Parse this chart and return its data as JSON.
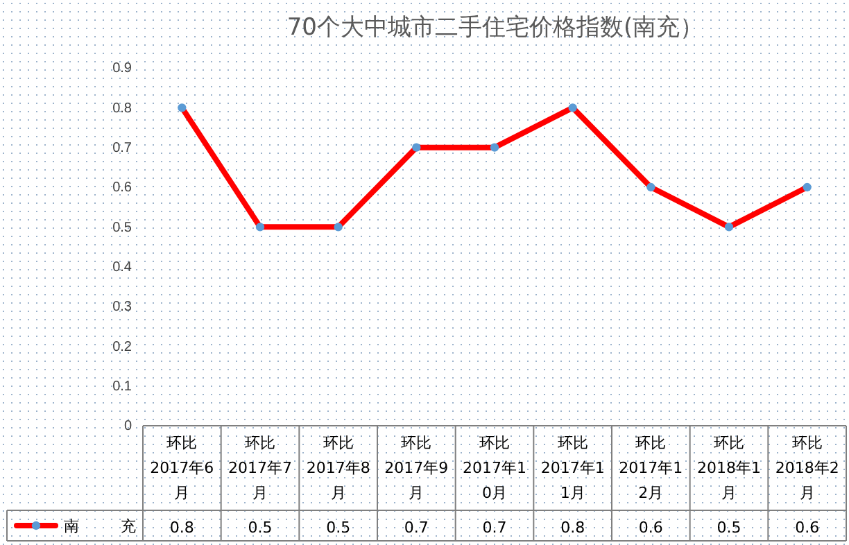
{
  "chart_data": {
    "type": "line",
    "title": "70个大中城市二手住宅价格指数(南充）",
    "categories": [
      "环比 2017年6月",
      "环比 2017年7月",
      "环比 2017年8月",
      "环比 2017年9月",
      "环比 2017年10月",
      "环比 2017年11月",
      "环比 2017年12月",
      "环比 2018年1月",
      "环比 2018年2月"
    ],
    "series": [
      {
        "name": "南充",
        "color": "#ff0000",
        "values": [
          0.8,
          0.5,
          0.5,
          0.7,
          0.7,
          0.8,
          0.6,
          0.5,
          0.6
        ]
      }
    ],
    "ylim": [
      0,
      0.9
    ],
    "yticks": [
      0,
      0.1,
      0.2,
      0.3,
      0.4,
      0.5,
      0.6,
      0.7,
      0.8,
      0.9
    ],
    "marker": "circle",
    "data_labels": true,
    "legend": "bottom left"
  }
}
